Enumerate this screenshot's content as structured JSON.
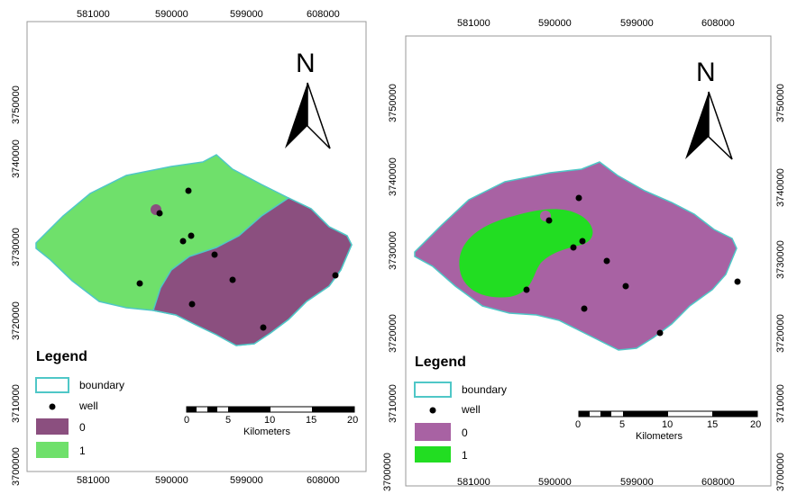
{
  "maps": [
    {
      "top_ticks": [
        "581000",
        "590000",
        "599000",
        "608000"
      ],
      "bottom_ticks": [
        "581000",
        "590000",
        "599000",
        "608000"
      ],
      "left_ticks": [
        "3750000",
        "3740000",
        "3730000",
        "3720000",
        "3710000",
        "3700000"
      ],
      "north": "N",
      "legend": {
        "title": "Legend",
        "items": [
          {
            "label": "boundary",
            "color": "#ffffff"
          },
          {
            "label": "well",
            "color": "#000000"
          },
          {
            "label": "0",
            "color": "#8b4f7f"
          },
          {
            "label": "1",
            "color": "#6fe06b"
          }
        ]
      },
      "scale": {
        "ticks": [
          "0",
          "5",
          "10",
          "15",
          "20"
        ],
        "unit": "Kilometers"
      }
    },
    {
      "top_ticks": [
        "581000",
        "590000",
        "599000",
        "608000"
      ],
      "bottom_ticks": [
        "581000",
        "590000",
        "599000",
        "608000"
      ],
      "left_ticks": [
        "3750000",
        "3740000",
        "3730000",
        "3720000",
        "3710000",
        "3700000"
      ],
      "right_ticks": [
        "3750000",
        "3740000",
        "3730000",
        "3720000",
        "3710000",
        "3700000"
      ],
      "north": "N",
      "legend": {
        "title": "Legend",
        "items": [
          {
            "label": "boundary",
            "color": "#ffffff"
          },
          {
            "label": "well",
            "color": "#000000"
          },
          {
            "label": "0",
            "color": "#a862a3"
          },
          {
            "label": "1",
            "color": "#22dd22"
          }
        ]
      },
      "scale": {
        "ticks": [
          "0",
          "5",
          "10",
          "15",
          "20"
        ],
        "unit": "Kilometers"
      }
    }
  ]
}
